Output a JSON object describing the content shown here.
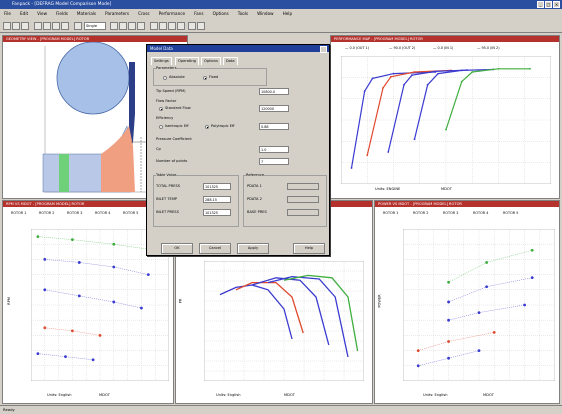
{
  "app": {
    "title": "Fanpack - [DEFRAG Model Comparison Mode]",
    "menu": [
      "File",
      "Edit",
      "View",
      "Fields",
      "Materials",
      "Parameters",
      "Cross",
      "Performance",
      "Fans",
      "Options",
      "Tools",
      "Window",
      "Help"
    ],
    "toolbar_select": "Single"
  },
  "panes": {
    "geometry": {
      "title": "GEOMETRY VIEW - [PROGRAM MODEL] ROTOR"
    },
    "top_right": {
      "title": "PERFORMANCE MAP - [PROGRAM MODEL] ROTOR"
    },
    "bottom_left": {
      "title": "RPM VS MDOT - [PROGRAM MODEL] ROTOR"
    },
    "bottom_mid": {
      "title": "PR VS MDOT - [PROGRAM MODEL] ROTOR"
    },
    "bottom_right": {
      "title": "POWER VS MDOT - [PROGRAM MODEL] ROTOR"
    }
  },
  "dialog": {
    "title": "Model Data",
    "tabs": [
      "Settings",
      "Operating",
      "Options",
      "Data"
    ],
    "group1": "Parameters",
    "radio1": "Absolute",
    "radio2": "Fixed",
    "row1_label": "Tip Speed (RPM)",
    "row1_value": "10800.0",
    "group2": "Flow Factor",
    "row2_label": "Standard Flow",
    "row2_value": "120000",
    "group3": "Efficiency",
    "radio3": "Isentropic Eff",
    "radio4": "Polytropic Eff",
    "row3_value": "0.88",
    "row4_label": "Pressure Coefficient",
    "row5_label": "Cp",
    "row5_value": "1.0",
    "row6_label": "Number of points",
    "row6_value": "7",
    "group4": "Table Value",
    "group5": "Reference",
    "sub1": "TOTAL PRESS",
    "sub1_value": "101325",
    "sub2": "INLET TEMP",
    "sub2_value": "288.15",
    "sub3": "INLET PRESS",
    "sub3_value": "101325",
    "ref1": "PDATA 1",
    "ref2": "PDATA 2",
    "ref3": "BASE PRES",
    "buttons": [
      "OK",
      "Cancel",
      "Apply",
      "Help"
    ]
  },
  "status": "Ready",
  "charts": {
    "top_right_legend": [
      "— 0.0 (OUT 1)",
      "— 90.0 (OUT 2)",
      "— 0.0 (IN 1)",
      "— 95.0 (IN 2)"
    ],
    "top_right_xlabel": "MDOT",
    "top_right_xlabel2": "Units: ENGINE",
    "bottom_left_legend": [
      "ROTOR 1",
      "ROTOR 2",
      "ROTOR 3",
      "ROTOR 4",
      "ROTOR 5"
    ],
    "bottom_left_xlabel": "MDOT",
    "bottom_left_xlabel2": "Units: English",
    "bottom_left_ylabel": "RPM",
    "bottom_mid_xlabel": "MDOT",
    "bottom_mid_xlabel2": "Units: English",
    "bottom_mid_ylabel": "PR",
    "bottom_right_legend": [
      "ROTOR 1",
      "ROTOR 2",
      "ROTOR 3",
      "ROTOR 4",
      "ROTOR 5"
    ],
    "bottom_right_xlabel": "MDOT",
    "bottom_right_xlabel2": "Units: English",
    "bottom_right_ylabel": "POWER"
  },
  "chart_data": [
    {
      "type": "line",
      "title": "",
      "xlabel": "MDOT",
      "ylabel": "",
      "series": [
        {
          "values": [
            [
              2.2,
              0.5
            ],
            [
              2.45,
              2.9
            ],
            [
              2.6,
              3.3
            ],
            [
              3.0,
              3.45
            ],
            [
              3.8,
              3.5
            ]
          ],
          "color": "#3a3ad0"
        },
        {
          "values": [
            [
              2.5,
              0.9
            ],
            [
              2.8,
              3.0
            ],
            [
              2.95,
              3.35
            ],
            [
              3.4,
              3.5
            ],
            [
              4.1,
              3.55
            ]
          ],
          "color": "#e04a30"
        },
        {
          "values": [
            [
              2.9,
              1.0
            ],
            [
              3.2,
              3.1
            ],
            [
              3.35,
              3.4
            ],
            [
              3.8,
              3.52
            ],
            [
              4.4,
              3.56
            ]
          ],
          "color": "#3a3ad0"
        },
        {
          "values": [
            [
              3.4,
              1.4
            ],
            [
              3.65,
              3.1
            ],
            [
              3.85,
              3.45
            ],
            [
              4.3,
              3.55
            ],
            [
              4.9,
              3.58
            ]
          ],
          "color": "#3a3ad0"
        },
        {
          "values": [
            [
              4.0,
              1.7
            ],
            [
              4.3,
              3.2
            ],
            [
              4.5,
              3.5
            ],
            [
              5.0,
              3.6
            ],
            [
              5.6,
              3.6
            ]
          ],
          "color": "#3fae3f"
        }
      ]
    },
    {
      "type": "scatter",
      "series": [
        {
          "values": [
            [
              0.05,
              0.95
            ],
            [
              0.3,
              0.93
            ],
            [
              0.6,
              0.9
            ],
            [
              0.9,
              0.86
            ]
          ],
          "color": "#3fae3f"
        },
        {
          "values": [
            [
              0.1,
              0.8
            ],
            [
              0.35,
              0.78
            ],
            [
              0.6,
              0.75
            ],
            [
              0.85,
              0.7
            ]
          ],
          "color": "#3a3ad0"
        },
        {
          "values": [
            [
              0.1,
              0.6
            ],
            [
              0.35,
              0.56
            ],
            [
              0.6,
              0.52
            ],
            [
              0.8,
              0.48
            ]
          ],
          "color": "#3a3ad0"
        },
        {
          "values": [
            [
              0.1,
              0.35
            ],
            [
              0.3,
              0.33
            ],
            [
              0.5,
              0.3
            ]
          ],
          "color": "#e04a30"
        },
        {
          "values": [
            [
              0.05,
              0.18
            ],
            [
              0.25,
              0.16
            ],
            [
              0.45,
              0.14
            ]
          ],
          "color": "#3a3ad0"
        }
      ]
    },
    {
      "type": "line",
      "series": [
        {
          "values": [
            [
              0.1,
              0.72
            ],
            [
              0.2,
              0.78
            ],
            [
              0.3,
              0.8
            ],
            [
              0.4,
              0.76
            ],
            [
              0.5,
              0.6
            ],
            [
              0.55,
              0.35
            ]
          ],
          "color": "#3a3ad0"
        },
        {
          "values": [
            [
              0.2,
              0.76
            ],
            [
              0.3,
              0.82
            ],
            [
              0.45,
              0.82
            ],
            [
              0.55,
              0.7
            ],
            [
              0.62,
              0.4
            ]
          ],
          "color": "#e04a30"
        },
        {
          "values": [
            [
              0.3,
              0.8
            ],
            [
              0.45,
              0.86
            ],
            [
              0.6,
              0.84
            ],
            [
              0.7,
              0.7
            ],
            [
              0.78,
              0.3
            ]
          ],
          "color": "#3a3ad0"
        },
        {
          "values": [
            [
              0.4,
              0.82
            ],
            [
              0.55,
              0.87
            ],
            [
              0.72,
              0.85
            ],
            [
              0.82,
              0.7
            ],
            [
              0.9,
              0.2
            ]
          ],
          "color": "#3a3ad0"
        },
        {
          "values": [
            [
              0.5,
              0.84
            ],
            [
              0.65,
              0.88
            ],
            [
              0.8,
              0.86
            ],
            [
              0.9,
              0.7
            ],
            [
              0.96,
              0.25
            ]
          ],
          "color": "#3fae3f"
        }
      ]
    },
    {
      "type": "scatter",
      "series": [
        {
          "values": [
            [
              0.1,
              0.1
            ],
            [
              0.3,
              0.15
            ],
            [
              0.5,
              0.2
            ]
          ],
          "color": "#3a3ad0"
        },
        {
          "values": [
            [
              0.1,
              0.2
            ],
            [
              0.3,
              0.26
            ],
            [
              0.6,
              0.32
            ]
          ],
          "color": "#e04a30"
        },
        {
          "values": [
            [
              0.3,
              0.4
            ],
            [
              0.5,
              0.45
            ],
            [
              0.8,
              0.5
            ]
          ],
          "color": "#3a3ad0"
        },
        {
          "values": [
            [
              0.3,
              0.52
            ],
            [
              0.55,
              0.62
            ],
            [
              0.85,
              0.68
            ]
          ],
          "color": "#3a3ad0"
        },
        {
          "values": [
            [
              0.3,
              0.65
            ],
            [
              0.55,
              0.78
            ],
            [
              0.85,
              0.86
            ]
          ],
          "color": "#3fae3f"
        }
      ]
    }
  ]
}
